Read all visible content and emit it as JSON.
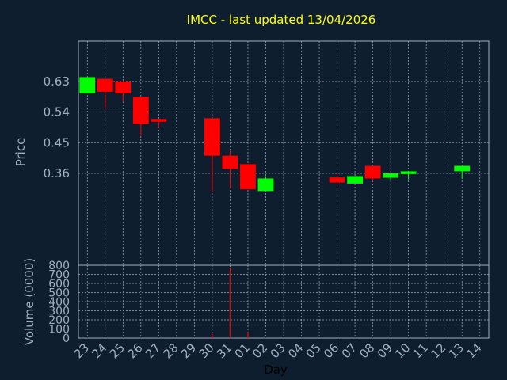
{
  "title": "IMCC - last updated 13/04/2026",
  "colors": {
    "background": "#0f1e2e",
    "up": "#00ff00",
    "down": "#ff0000",
    "grid": "#9fb0c4",
    "title": "#ffff00"
  },
  "chart_data": [
    {
      "type": "candlestick",
      "ylabel": "Price",
      "yticks": [
        "0.63",
        "0.54",
        "0.45",
        "0.36"
      ],
      "ylim": [
        0.3,
        0.67
      ],
      "grid": true,
      "x": [
        "23",
        "24",
        "25",
        "26",
        "27",
        "30",
        "31",
        "01",
        "02",
        "06",
        "07",
        "08",
        "09",
        "10",
        "13"
      ],
      "series": [
        {
          "day": "23",
          "open": 0.595,
          "close": 0.643,
          "high": 0.643,
          "low": 0.595
        },
        {
          "day": "24",
          "open": 0.638,
          "close": 0.6,
          "high": 0.638,
          "low": 0.55
        },
        {
          "day": "25",
          "open": 0.63,
          "close": 0.595,
          "high": 0.63,
          "low": 0.57
        },
        {
          "day": "26",
          "open": 0.585,
          "close": 0.505,
          "high": 0.585,
          "low": 0.47
        },
        {
          "day": "27",
          "open": 0.52,
          "close": 0.512,
          "high": 0.52,
          "low": 0.493
        },
        {
          "day": "30",
          "open": 0.522,
          "close": 0.412,
          "high": 0.522,
          "low": 0.305
        },
        {
          "day": "31",
          "open": 0.412,
          "close": 0.373,
          "high": 0.427,
          "low": 0.315
        },
        {
          "day": "01",
          "open": 0.387,
          "close": 0.313,
          "high": 0.387,
          "low": 0.313
        },
        {
          "day": "02",
          "open": 0.308,
          "close": 0.345,
          "high": 0.352,
          "low": 0.308
        },
        {
          "day": "06",
          "open": 0.348,
          "close": 0.333,
          "high": 0.358,
          "low": 0.327
        },
        {
          "day": "07",
          "open": 0.33,
          "close": 0.352,
          "high": 0.352,
          "low": 0.33
        },
        {
          "day": "08",
          "open": 0.382,
          "close": 0.345,
          "high": 0.382,
          "low": 0.337
        },
        {
          "day": "09",
          "open": 0.347,
          "close": 0.36,
          "high": 0.36,
          "low": 0.34
        },
        {
          "day": "10",
          "open": 0.358,
          "close": 0.366,
          "high": 0.366,
          "low": 0.342
        },
        {
          "day": "13",
          "open": 0.366,
          "close": 0.382,
          "high": 0.382,
          "low": 0.344
        }
      ]
    },
    {
      "type": "bar",
      "ylabel": "Volume (0000)",
      "xlabel": "Day",
      "yticks": [
        "800",
        "700",
        "600",
        "500",
        "400",
        "300",
        "200",
        "100",
        "0"
      ],
      "ylim": [
        0,
        800
      ],
      "grid": true,
      "categories": [
        "23",
        "24",
        "25",
        "26",
        "27",
        "28",
        "29",
        "30",
        "31",
        "01",
        "02",
        "03",
        "04",
        "05",
        "06",
        "07",
        "08",
        "09",
        "10",
        "11",
        "12",
        "13",
        "14"
      ],
      "values": [
        2,
        2,
        2,
        2,
        2,
        0,
        0,
        45,
        775,
        65,
        2,
        0,
        0,
        0,
        2,
        2,
        2,
        2,
        2,
        0,
        0,
        2,
        0
      ]
    }
  ]
}
